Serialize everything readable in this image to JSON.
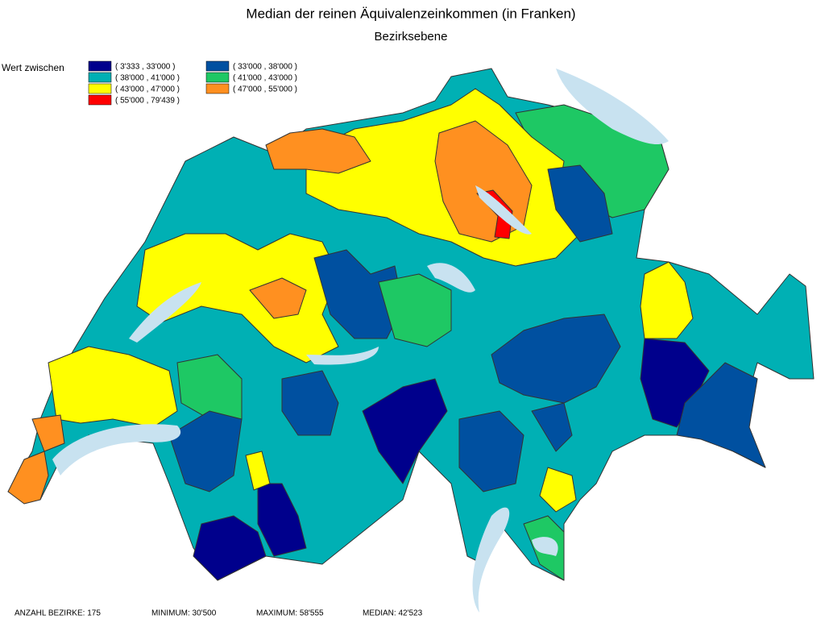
{
  "header": {
    "title": "Median der reinen Äquivalenzeinkommen (in Franken)",
    "subtitle": "Bezirksebene"
  },
  "legend": {
    "label": "Wert zwischen",
    "items": [
      {
        "label": "( 3'333 , 33'000 )",
        "color": "#00008c"
      },
      {
        "label": "( 33'000 , 38'000 )",
        "color": "#0050a0"
      },
      {
        "label": "( 38'000 , 41'000 )",
        "color": "#00b0b4"
      },
      {
        "label": "( 41'000 , 43'000 )",
        "color": "#1ec864"
      },
      {
        "label": "( 43'000 , 47'000 )",
        "color": "#ffff00"
      },
      {
        "label": "( 47'000 , 55'000 )",
        "color": "#ff9020"
      },
      {
        "label": "( 55'000 , 79'439 )",
        "color": "#ff0000"
      }
    ]
  },
  "footer": [
    "ANZAHL BEZIRKE: 175",
    "MINIMUM: 30'500",
    "MAXIMUM: 58'555",
    "MEDIAN: 42'523"
  ]
}
